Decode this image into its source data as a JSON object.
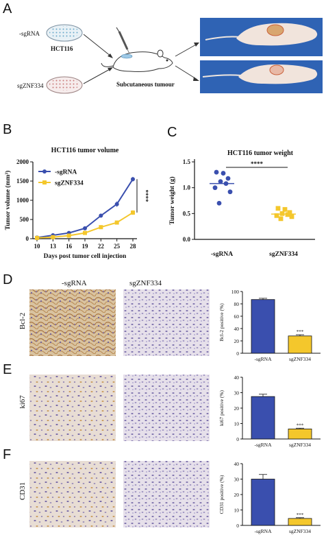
{
  "panels": {
    "a": "A",
    "b": "B",
    "c": "C",
    "d": "D",
    "e": "E",
    "f": "F"
  },
  "schematic": {
    "group1": "-sgRNA",
    "group2": "sgZNF334",
    "cell_line": "HCT116",
    "caption": "Subcutaneous tumour"
  },
  "ihc": {
    "col1": "-sgRNA",
    "col2": "sgZNF334",
    "rows": [
      "Bcl-2",
      "ki67",
      "CD31"
    ]
  },
  "colors": {
    "blue": "#3a4fae",
    "yellow": "#f4c72c"
  },
  "chart_data": [
    {
      "type": "line",
      "title": "HCT116 tumor volume",
      "xlabel": "Days post tumor cell injection",
      "ylabel": "Tumor volume (mm³)",
      "x": [
        10,
        13,
        16,
        19,
        22,
        25,
        28
      ],
      "ylim": [
        0,
        2000
      ],
      "yticks": [
        0,
        500,
        1000,
        1500,
        2000
      ],
      "series": [
        {
          "name": "-sgRNA",
          "values": [
            30,
            90,
            150,
            270,
            600,
            900,
            1550
          ],
          "errors": [
            10,
            15,
            20,
            30,
            50,
            70,
            60
          ]
        },
        {
          "name": "sgZNF334",
          "values": [
            20,
            40,
            80,
            150,
            300,
            420,
            680
          ],
          "errors": [
            5,
            10,
            15,
            20,
            30,
            40,
            60
          ]
        }
      ],
      "significance": "****"
    },
    {
      "type": "scatter",
      "title": "HCT116 tumor weight",
      "ylabel": "Tumor weight (g)",
      "categories": [
        "-sgRNA",
        "sgZNF334"
      ],
      "ylim": [
        0,
        1.5
      ],
      "yticks": [
        "0.0",
        "0.5",
        "1.0",
        "1.5"
      ],
      "groups": [
        {
          "name": "-sgRNA",
          "points": [
            1.3,
            1.28,
            1.18,
            1.12,
            1.08,
            1.0,
            0.92,
            0.7
          ],
          "mean": 1.08
        },
        {
          "name": "sgZNF334",
          "points": [
            0.6,
            0.58,
            0.52,
            0.5,
            0.48,
            0.46,
            0.44,
            0.4
          ],
          "mean": 0.49
        }
      ],
      "significance": "****"
    },
    {
      "type": "bar",
      "ylabel": "Bcl-2 positive (%)",
      "categories": [
        "-sgRNA",
        "sgZNF334"
      ],
      "values": [
        87,
        28
      ],
      "errors": [
        2,
        2
      ],
      "ylim": [
        0,
        100
      ],
      "yticks": [
        0,
        20,
        40,
        60,
        80,
        100
      ],
      "significance": "***"
    },
    {
      "type": "bar",
      "ylabel": "ki67 positive (%)",
      "categories": [
        "-sgRNA",
        "sgZNF334"
      ],
      "values": [
        27.5,
        6.5
      ],
      "errors": [
        1.5,
        0.5
      ],
      "ylim": [
        0,
        40
      ],
      "yticks": [
        0,
        10,
        20,
        30,
        40
      ],
      "significance": "***"
    },
    {
      "type": "bar",
      "ylabel": "CD31 positive (%)",
      "categories": [
        "-sgRNA",
        "sgZNF334"
      ],
      "values": [
        30,
        4.5
      ],
      "errors": [
        3,
        0.5
      ],
      "ylim": [
        0,
        40
      ],
      "yticks": [
        0,
        10,
        20,
        30,
        40
      ],
      "significance": "***"
    }
  ]
}
